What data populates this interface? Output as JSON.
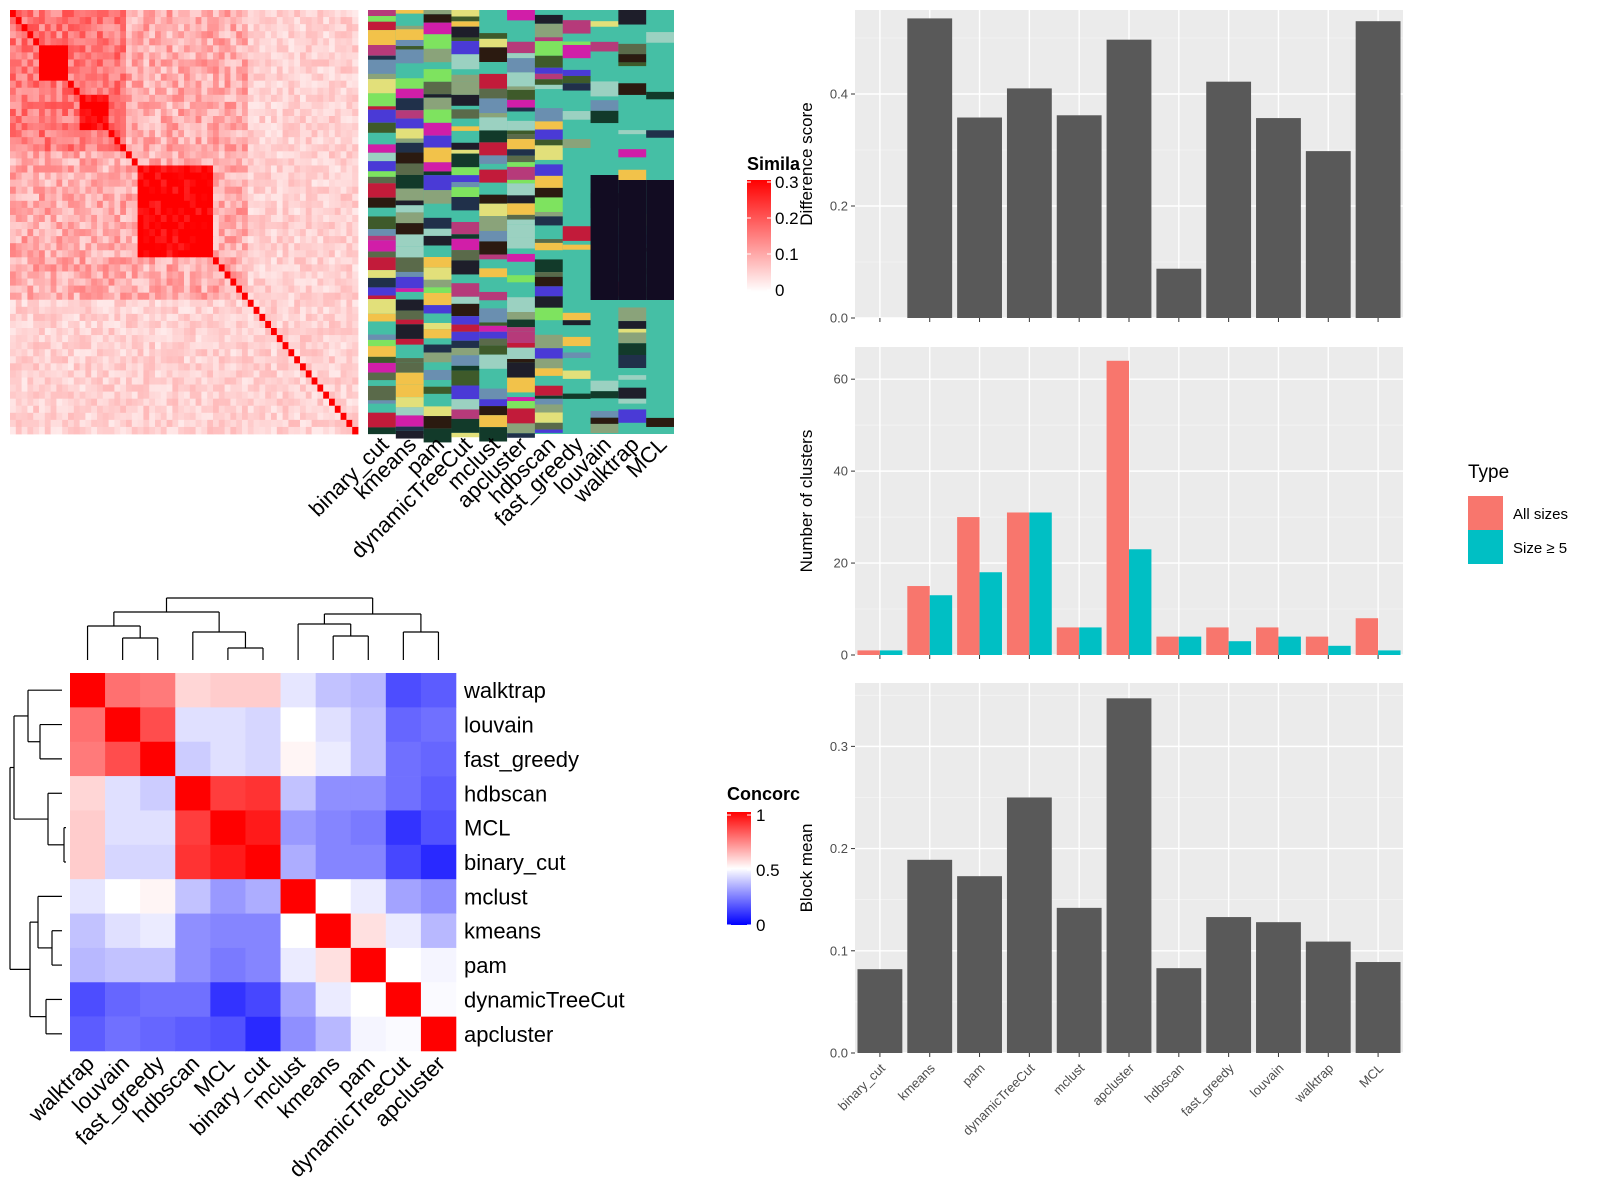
{
  "colors": {
    "panel_bg": "#ebebeb",
    "bar_dark": "#595959",
    "all_sizes": "#F8766D",
    "size_ge5": "#00BFC4",
    "sim_high": "#ff0000",
    "sim_low": "#ffffff",
    "conc_high": "#ff0000",
    "conc_mid": "#ffffff",
    "conc_low": "#0000ff",
    "bg_cluster": "#45bfa5"
  },
  "methods": [
    "binary_cut",
    "kmeans",
    "pam",
    "dynamicTreeCut",
    "mclust",
    "apcluster",
    "hdbscan",
    "fast_greedy",
    "louvain",
    "walktrap",
    "MCL"
  ],
  "similarity_legend": {
    "title": "Similarity",
    "title_visible": "Simila",
    "ticks": [
      "0.3",
      "0.2",
      "0.1",
      "0"
    ]
  },
  "concordance_legend": {
    "title": "Concordance",
    "title_visible": "Concorc",
    "ticks": [
      "1",
      "0.5",
      "0"
    ]
  },
  "concordance": {
    "order": [
      "walktrap",
      "louvain",
      "fast_greedy",
      "hdbscan",
      "MCL",
      "binary_cut",
      "mclust",
      "kmeans",
      "pam",
      "dynamicTreeCut",
      "apcluster"
    ],
    "matrix": [
      [
        1.0,
        0.78,
        0.76,
        0.58,
        0.6,
        0.6,
        0.45,
        0.38,
        0.36,
        0.15,
        0.18
      ],
      [
        0.78,
        1.0,
        0.85,
        0.44,
        0.44,
        0.42,
        0.5,
        0.44,
        0.38,
        0.2,
        0.22
      ],
      [
        0.76,
        0.85,
        1.0,
        0.4,
        0.44,
        0.42,
        0.52,
        0.46,
        0.38,
        0.22,
        0.2
      ],
      [
        0.58,
        0.44,
        0.4,
        1.0,
        0.88,
        0.9,
        0.38,
        0.28,
        0.28,
        0.22,
        0.18
      ],
      [
        0.6,
        0.44,
        0.44,
        0.88,
        1.0,
        0.95,
        0.3,
        0.26,
        0.24,
        0.1,
        0.16
      ],
      [
        0.6,
        0.42,
        0.42,
        0.9,
        0.95,
        1.0,
        0.34,
        0.26,
        0.26,
        0.14,
        0.08
      ],
      [
        0.45,
        0.5,
        0.52,
        0.38,
        0.3,
        0.34,
        1.0,
        0.5,
        0.46,
        0.32,
        0.28
      ],
      [
        0.38,
        0.44,
        0.46,
        0.28,
        0.26,
        0.26,
        0.5,
        1.0,
        0.56,
        0.46,
        0.36
      ],
      [
        0.36,
        0.38,
        0.38,
        0.28,
        0.24,
        0.26,
        0.46,
        0.56,
        1.0,
        0.5,
        0.48
      ],
      [
        0.15,
        0.2,
        0.22,
        0.22,
        0.1,
        0.14,
        0.32,
        0.46,
        0.5,
        1.0,
        0.49
      ],
      [
        0.18,
        0.22,
        0.2,
        0.18,
        0.16,
        0.08,
        0.28,
        0.36,
        0.48,
        0.49,
        1.0
      ]
    ]
  },
  "chart_data": [
    {
      "type": "bar",
      "ylabel": "Difference score",
      "xlabel": "",
      "categories": [
        "binary_cut",
        "kmeans",
        "pam",
        "dynamicTreeCut",
        "mclust",
        "apcluster",
        "hdbscan",
        "fast_greedy",
        "louvain",
        "walktrap",
        "MCL"
      ],
      "values": [
        0.0,
        0.535,
        0.358,
        0.41,
        0.362,
        0.497,
        0.088,
        0.422,
        0.357,
        0.298,
        0.53
      ],
      "ylim": [
        0,
        0.55
      ],
      "yticks": [
        0.0,
        0.2,
        0.4
      ],
      "ytick_labels": [
        "0.0",
        "0.2",
        "0.4"
      ],
      "grid": true
    },
    {
      "type": "bar",
      "ylabel": "Number of clusters",
      "xlabel": "",
      "categories": [
        "binary_cut",
        "kmeans",
        "pam",
        "dynamicTreeCut",
        "mclust",
        "apcluster",
        "hdbscan",
        "fast_greedy",
        "louvain",
        "walktrap",
        "MCL"
      ],
      "series": [
        {
          "name": "All sizes",
          "values": [
            1,
            15,
            30,
            31,
            6,
            64,
            4,
            6,
            6,
            4,
            8
          ]
        },
        {
          "name": "Size ≥ 5",
          "values": [
            1,
            13,
            18,
            31,
            6,
            23,
            4,
            3,
            4,
            2,
            1
          ]
        }
      ],
      "legend": {
        "title": "Type",
        "position": "right"
      },
      "ylim": [
        0,
        67
      ],
      "yticks": [
        0,
        20,
        40,
        60
      ],
      "ytick_labels": [
        "0",
        "20",
        "40",
        "60"
      ],
      "grid": true
    },
    {
      "type": "bar",
      "ylabel": "Block mean",
      "xlabel": "",
      "categories": [
        "binary_cut",
        "kmeans",
        "pam",
        "dynamicTreeCut",
        "mclust",
        "apcluster",
        "hdbscan",
        "fast_greedy",
        "louvain",
        "walktrap",
        "MCL"
      ],
      "values": [
        0.082,
        0.189,
        0.173,
        0.25,
        0.142,
        0.347,
        0.083,
        0.133,
        0.128,
        0.109,
        0.089
      ],
      "ylim": [
        0,
        0.362
      ],
      "yticks": [
        0.0,
        0.1,
        0.2,
        0.3
      ],
      "ytick_labels": [
        "0.0",
        "0.1",
        "0.2",
        "0.3"
      ],
      "grid": true
    }
  ]
}
